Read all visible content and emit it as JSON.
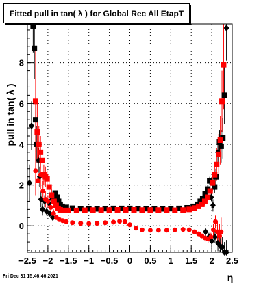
{
  "title": "Fitted pull in tan( λ ) for Global Rec All EtapT",
  "timestamp": "Fri Dec 31 15:46:46 2021",
  "chart_data": {
    "type": "scatter",
    "title": "Fitted pull in tan( λ ) for Global Rec All EtapT",
    "xlabel": "η",
    "ylabel": "pull in tan( λ )",
    "xlim": [
      -2.5,
      2.5
    ],
    "ylim": [
      -1.3,
      9.9
    ],
    "xticks": [
      -2.5,
      -2,
      -1.5,
      -1,
      -0.5,
      0,
      0.5,
      1,
      1.5,
      2,
      2.5
    ],
    "xtick_labels": [
      "−2.5",
      "−2",
      "−1.5",
      "−1",
      "−0.5",
      "0",
      "0.5",
      "1",
      "1.5",
      "2",
      "2.5"
    ],
    "yticks": [
      0,
      2,
      4,
      6,
      8
    ],
    "ytick_labels": [
      "0",
      "2",
      "4",
      "6",
      "8"
    ],
    "grid": true,
    "series": [
      {
        "color": "#000000",
        "marker": "square",
        "points": [
          {
            "x": -2.45,
            "y": 2.1,
            "err": 0.9,
            "m": "d"
          },
          {
            "x": -2.4,
            "y": 4.9,
            "err": 1.2,
            "m": "d"
          },
          {
            "x": -2.36,
            "y": 9.8,
            "err": 1.3,
            "m": "s"
          },
          {
            "x": -2.33,
            "y": 8.7,
            "err": 1.5,
            "m": "s"
          },
          {
            "x": -2.3,
            "y": 5.2,
            "err": 1.0,
            "m": "s"
          },
          {
            "x": -2.27,
            "y": 4.0,
            "err": 0.9,
            "m": "s"
          },
          {
            "x": -2.23,
            "y": 3.2,
            "err": 0.6,
            "m": "d"
          },
          {
            "x": -2.2,
            "y": 2.4,
            "err": 0.5,
            "m": "d"
          },
          {
            "x": -2.17,
            "y": 1.3,
            "err": 0.4,
            "m": "d"
          },
          {
            "x": -2.13,
            "y": 0.8,
            "err": 0.3,
            "m": "d"
          },
          {
            "x": -2.08,
            "y": 1.2,
            "err": 0.3,
            "m": "d"
          },
          {
            "x": -2.03,
            "y": 0.7,
            "err": 0.2,
            "m": "d"
          },
          {
            "x": -1.97,
            "y": 1.1,
            "err": 0.2,
            "m": "d"
          },
          {
            "x": -1.9,
            "y": 1.3,
            "err": 0.2,
            "m": "d"
          },
          {
            "x": -1.82,
            "y": 1.6,
            "err": 0.1,
            "m": "s"
          },
          {
            "x": -1.78,
            "y": 1.4,
            "err": 0.1,
            "m": "s"
          },
          {
            "x": -1.74,
            "y": 1.2,
            "err": 0.1,
            "m": "s"
          },
          {
            "x": -1.7,
            "y": 1.05,
            "err": 0.1,
            "m": "s"
          },
          {
            "x": -1.65,
            "y": 0.95,
            "err": 0.0,
            "m": "s"
          },
          {
            "x": -1.55,
            "y": 0.9,
            "err": 0.0,
            "m": "s"
          },
          {
            "x": -1.4,
            "y": 0.86,
            "err": 0.0,
            "m": "s"
          },
          {
            "x": -1.2,
            "y": 0.84,
            "err": 0.0,
            "m": "s"
          },
          {
            "x": -1.0,
            "y": 0.83,
            "err": 0.0,
            "m": "s"
          },
          {
            "x": -0.8,
            "y": 0.83,
            "err": 0.0,
            "m": "s"
          },
          {
            "x": -0.6,
            "y": 0.84,
            "err": 0.0,
            "m": "s"
          },
          {
            "x": -0.4,
            "y": 0.85,
            "err": 0.0,
            "m": "s"
          },
          {
            "x": -0.2,
            "y": 0.85,
            "err": 0.0,
            "m": "s"
          },
          {
            "x": 0.0,
            "y": 0.85,
            "err": 0.0,
            "m": "s"
          },
          {
            "x": 0.2,
            "y": 0.84,
            "err": 0.0,
            "m": "s"
          },
          {
            "x": 0.4,
            "y": 0.84,
            "err": 0.0,
            "m": "s"
          },
          {
            "x": 0.6,
            "y": 0.83,
            "err": 0.0,
            "m": "s"
          },
          {
            "x": 0.8,
            "y": 0.83,
            "err": 0.0,
            "m": "s"
          },
          {
            "x": 1.0,
            "y": 0.84,
            "err": 0.0,
            "m": "s"
          },
          {
            "x": 1.2,
            "y": 0.85,
            "err": 0.0,
            "m": "s"
          },
          {
            "x": 1.4,
            "y": 0.88,
            "err": 0.0,
            "m": "s"
          },
          {
            "x": 1.55,
            "y": 0.95,
            "err": 0.0,
            "m": "s"
          },
          {
            "x": 1.65,
            "y": 1.05,
            "err": 0.1,
            "m": "s"
          },
          {
            "x": 1.72,
            "y": 1.2,
            "err": 0.1,
            "m": "s"
          },
          {
            "x": 1.78,
            "y": 1.35,
            "err": 0.1,
            "m": "s"
          },
          {
            "x": 1.84,
            "y": 1.55,
            "err": 0.1,
            "m": "s"
          },
          {
            "x": 1.9,
            "y": 1.8,
            "err": 0.2,
            "m": "s"
          },
          {
            "x": 1.95,
            "y": 2.2,
            "err": 0.2,
            "m": "s"
          },
          {
            "x": 1.99,
            "y": 1.4,
            "err": 0.2,
            "m": "d"
          },
          {
            "x": 2.03,
            "y": 1.0,
            "err": 0.3,
            "m": "d"
          },
          {
            "x": 2.07,
            "y": 1.9,
            "err": 0.3,
            "m": "s"
          },
          {
            "x": 2.1,
            "y": 2.4,
            "err": 0.4,
            "m": "s"
          },
          {
            "x": 2.15,
            "y": 3.6,
            "err": 0.5,
            "m": "d"
          },
          {
            "x": 2.19,
            "y": 4.1,
            "err": 0.6,
            "m": "s"
          },
          {
            "x": 2.23,
            "y": 3.9,
            "err": 0.8,
            "m": "s"
          },
          {
            "x": 2.27,
            "y": 4.3,
            "err": 1.0,
            "m": "s"
          },
          {
            "x": 2.31,
            "y": 6.4,
            "err": 1.4,
            "m": "s"
          },
          {
            "x": 2.36,
            "y": 9.7,
            "err": 1.6,
            "m": "d"
          }
        ]
      },
      {
        "color": "#ff0000",
        "marker": "square",
        "points": [
          {
            "x": -2.3,
            "y": 6.1,
            "err": 2.5,
            "m": "s"
          },
          {
            "x": -2.26,
            "y": 4.6,
            "err": 1.5,
            "m": "s"
          },
          {
            "x": -2.22,
            "y": 4.0,
            "err": 0.9,
            "m": "s"
          },
          {
            "x": -2.18,
            "y": 3.6,
            "err": 0.8,
            "m": "s"
          },
          {
            "x": -2.14,
            "y": 3.2,
            "err": 0.6,
            "m": "s"
          },
          {
            "x": -2.1,
            "y": 2.5,
            "err": 0.5,
            "m": "s"
          },
          {
            "x": -2.06,
            "y": 2.4,
            "err": 0.5,
            "m": "s"
          },
          {
            "x": -2.02,
            "y": 2.3,
            "err": 0.4,
            "m": "s"
          },
          {
            "x": -1.97,
            "y": 1.9,
            "err": 0.3,
            "m": "s"
          },
          {
            "x": -1.91,
            "y": 1.5,
            "err": 0.3,
            "m": "s"
          },
          {
            "x": -1.85,
            "y": 1.2,
            "err": 0.2,
            "m": "s"
          },
          {
            "x": -1.8,
            "y": 1.0,
            "err": 0.1,
            "m": "s"
          },
          {
            "x": -1.75,
            "y": 0.85,
            "err": 0.1,
            "m": "s"
          },
          {
            "x": -1.7,
            "y": 0.78,
            "err": 0.0,
            "m": "s"
          },
          {
            "x": -1.62,
            "y": 0.75,
            "err": 0.0,
            "m": "s"
          },
          {
            "x": -1.5,
            "y": 0.75,
            "err": 0.0,
            "m": "s"
          },
          {
            "x": -1.3,
            "y": 0.75,
            "err": 0.0,
            "m": "s"
          },
          {
            "x": -1.1,
            "y": 0.76,
            "err": 0.0,
            "m": "s"
          },
          {
            "x": -0.9,
            "y": 0.77,
            "err": 0.0,
            "m": "s"
          },
          {
            "x": -0.7,
            "y": 0.77,
            "err": 0.0,
            "m": "s"
          },
          {
            "x": -0.5,
            "y": 0.77,
            "err": 0.0,
            "m": "s"
          },
          {
            "x": -0.3,
            "y": 0.78,
            "err": 0.0,
            "m": "s"
          },
          {
            "x": -0.1,
            "y": 0.78,
            "err": 0.0,
            "m": "s"
          },
          {
            "x": 0.1,
            "y": 0.78,
            "err": 0.0,
            "m": "s"
          },
          {
            "x": 0.3,
            "y": 0.77,
            "err": 0.0,
            "m": "s"
          },
          {
            "x": 0.5,
            "y": 0.77,
            "err": 0.0,
            "m": "s"
          },
          {
            "x": 0.7,
            "y": 0.77,
            "err": 0.0,
            "m": "s"
          },
          {
            "x": 0.9,
            "y": 0.77,
            "err": 0.0,
            "m": "s"
          },
          {
            "x": 1.1,
            "y": 0.76,
            "err": 0.0,
            "m": "s"
          },
          {
            "x": 1.3,
            "y": 0.77,
            "err": 0.0,
            "m": "s"
          },
          {
            "x": 1.45,
            "y": 0.8,
            "err": 0.0,
            "m": "s"
          },
          {
            "x": 1.58,
            "y": 0.87,
            "err": 0.1,
            "m": "s"
          },
          {
            "x": 1.68,
            "y": 0.95,
            "err": 0.1,
            "m": "s"
          },
          {
            "x": 1.76,
            "y": 1.05,
            "err": 0.1,
            "m": "s"
          },
          {
            "x": 1.83,
            "y": 1.2,
            "err": 0.2,
            "m": "s"
          },
          {
            "x": 1.9,
            "y": 1.4,
            "err": 0.2,
            "m": "s"
          },
          {
            "x": 1.96,
            "y": 1.7,
            "err": 0.3,
            "m": "s"
          },
          {
            "x": 2.02,
            "y": 2.1,
            "err": 0.4,
            "m": "s"
          },
          {
            "x": 2.07,
            "y": 2.5,
            "err": 0.5,
            "m": "s"
          },
          {
            "x": 2.12,
            "y": 3.0,
            "err": 0.8,
            "m": "s"
          },
          {
            "x": 2.17,
            "y": 3.5,
            "err": 1.0,
            "m": "s"
          },
          {
            "x": 2.21,
            "y": 4.2,
            "err": 1.2,
            "m": "s"
          },
          {
            "x": 2.25,
            "y": 6.1,
            "err": 1.5,
            "m": "s"
          },
          {
            "x": 2.29,
            "y": 7.9,
            "err": 2.2,
            "m": "s"
          }
        ]
      },
      {
        "color": "#000000",
        "marker": "diamond",
        "points": [
          {
            "x": -1.95,
            "y": 0.6,
            "err": 0.1,
            "m": "d"
          },
          {
            "x": -1.88,
            "y": 0.4,
            "err": 0.1,
            "m": "d"
          },
          {
            "x": 1.85,
            "y": -0.3,
            "err": 0.2,
            "m": "d"
          },
          {
            "x": 1.93,
            "y": -0.55,
            "err": 0.2,
            "m": "d"
          },
          {
            "x": 2.0,
            "y": -0.75,
            "err": 0.3,
            "m": "d"
          },
          {
            "x": 2.08,
            "y": -0.55,
            "err": 0.3,
            "m": "d"
          },
          {
            "x": 2.15,
            "y": -0.85,
            "err": 0.4,
            "m": "d"
          },
          {
            "x": 2.21,
            "y": -1.0,
            "err": 0.4,
            "m": "d"
          },
          {
            "x": 2.26,
            "y": -1.05,
            "err": 0.5,
            "m": "d"
          },
          {
            "x": 2.31,
            "y": -1.3,
            "err": 0.5,
            "m": "d"
          },
          {
            "x": 2.36,
            "y": -1.3,
            "err": 0.6,
            "m": "d"
          }
        ]
      },
      {
        "color": "#ff0000",
        "marker": "circle",
        "points": [
          {
            "x": -2.3,
            "y": 2.7,
            "err": 1.2,
            "m": "c"
          },
          {
            "x": -2.24,
            "y": 2.2,
            "err": 0.9,
            "m": "c"
          },
          {
            "x": -2.18,
            "y": 2.5,
            "err": 0.7,
            "m": "c"
          },
          {
            "x": -2.12,
            "y": 1.7,
            "err": 0.5,
            "m": "c"
          },
          {
            "x": -2.06,
            "y": 1.3,
            "err": 0.4,
            "m": "c"
          },
          {
            "x": -2.0,
            "y": 1.2,
            "err": 0.3,
            "m": "c"
          },
          {
            "x": -1.93,
            "y": 0.9,
            "err": 0.2,
            "m": "c"
          },
          {
            "x": -1.86,
            "y": 0.6,
            "err": 0.2,
            "m": "c"
          },
          {
            "x": -1.79,
            "y": 0.4,
            "err": 0.1,
            "m": "c"
          },
          {
            "x": -1.72,
            "y": 0.3,
            "err": 0.1,
            "m": "c"
          },
          {
            "x": -1.64,
            "y": 0.25,
            "err": 0.0,
            "m": "c"
          },
          {
            "x": -1.55,
            "y": 0.2,
            "err": 0.0,
            "m": "c"
          },
          {
            "x": -1.4,
            "y": 0.15,
            "err": 0.0,
            "m": "c"
          },
          {
            "x": -1.2,
            "y": 0.12,
            "err": 0.0,
            "m": "c"
          },
          {
            "x": -1.0,
            "y": 0.11,
            "err": 0.0,
            "m": "c"
          },
          {
            "x": -0.8,
            "y": 0.12,
            "err": 0.0,
            "m": "c"
          },
          {
            "x": -0.6,
            "y": 0.15,
            "err": 0.0,
            "m": "c"
          },
          {
            "x": -0.4,
            "y": 0.18,
            "err": 0.0,
            "m": "c"
          },
          {
            "x": -0.25,
            "y": 0.22,
            "err": 0.0,
            "m": "c"
          },
          {
            "x": -0.12,
            "y": 0.2,
            "err": 0.0,
            "m": "c"
          },
          {
            "x": 0.0,
            "y": 0.05,
            "err": 0.0,
            "m": "c"
          },
          {
            "x": 0.15,
            "y": -0.12,
            "err": 0.0,
            "m": "c"
          },
          {
            "x": 0.3,
            "y": -0.2,
            "err": 0.0,
            "m": "c"
          },
          {
            "x": 0.5,
            "y": -0.22,
            "err": 0.0,
            "m": "c"
          },
          {
            "x": 0.7,
            "y": -0.22,
            "err": 0.0,
            "m": "c"
          },
          {
            "x": 0.9,
            "y": -0.22,
            "err": 0.0,
            "m": "c"
          },
          {
            "x": 1.1,
            "y": -0.2,
            "err": 0.0,
            "m": "c"
          },
          {
            "x": 1.3,
            "y": -0.18,
            "err": 0.0,
            "m": "c"
          },
          {
            "x": 1.45,
            "y": -0.2,
            "err": 0.0,
            "m": "c"
          },
          {
            "x": 1.58,
            "y": -0.3,
            "err": 0.1,
            "m": "c"
          },
          {
            "x": 1.68,
            "y": -0.4,
            "err": 0.1,
            "m": "c"
          },
          {
            "x": 1.76,
            "y": -0.5,
            "err": 0.1,
            "m": "c"
          },
          {
            "x": 1.84,
            "y": -0.6,
            "err": 0.2,
            "m": "c"
          },
          {
            "x": 1.91,
            "y": -0.65,
            "err": 0.2,
            "m": "c"
          },
          {
            "x": 1.98,
            "y": -0.55,
            "err": 0.2,
            "m": "c"
          },
          {
            "x": 2.04,
            "y": -0.2,
            "err": 0.3,
            "m": "c"
          },
          {
            "x": 2.09,
            "y": 0.2,
            "err": 0.3,
            "m": "c"
          },
          {
            "x": 2.14,
            "y": -0.3,
            "err": 0.5,
            "m": "c"
          },
          {
            "x": 2.19,
            "y": -0.5,
            "err": 0.6,
            "m": "c"
          },
          {
            "x": 2.23,
            "y": -0.3,
            "err": 0.7,
            "m": "c"
          }
        ]
      }
    ]
  }
}
